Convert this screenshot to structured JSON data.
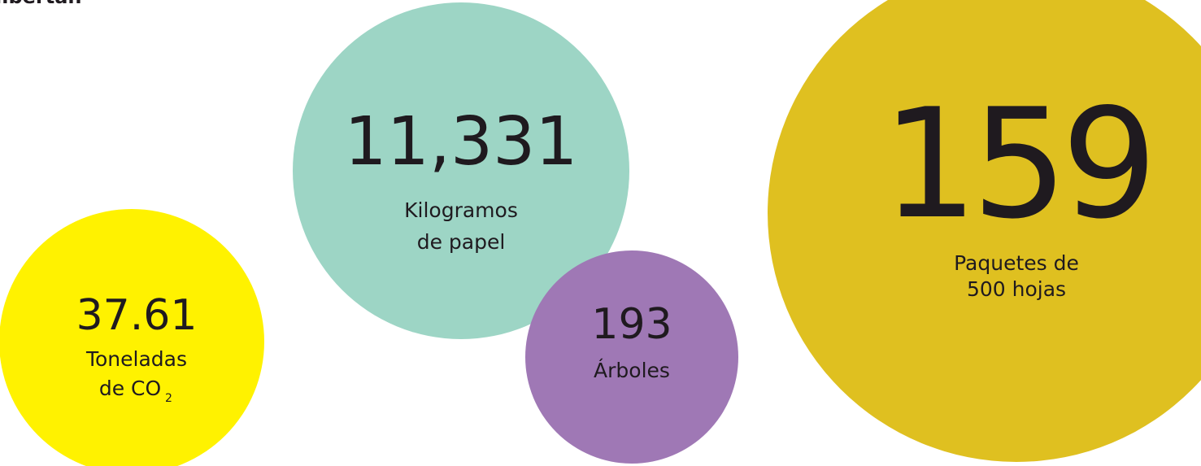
{
  "header": {
    "title": "libertan"
  },
  "bubbles": [
    {
      "value": "37.61",
      "label_lines": [
        "Toneladas",
        "de CO"
      ],
      "subscript": "2"
    },
    {
      "value": "11,331",
      "label_lines": [
        "Kilogramos",
        "de papel"
      ]
    },
    {
      "value": "193",
      "label_lines": [
        "Árboles"
      ]
    },
    {
      "value": "159",
      "label_lines": [
        "Paquetes de",
        "500 hojas"
      ]
    }
  ]
}
